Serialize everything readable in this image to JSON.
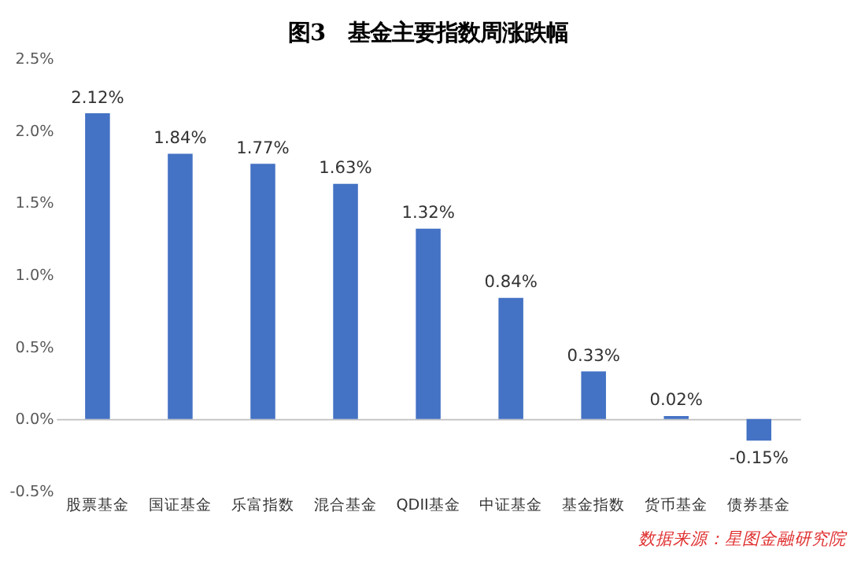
{
  "chart_data": {
    "type": "bar",
    "title": "图3　基金主要指数周涨跌幅",
    "categories": [
      "股票基金",
      "国证基金",
      "乐富指数",
      "混合基金",
      "QDII基金",
      "中证基金",
      "基金指数",
      "货币基金",
      "债券基金"
    ],
    "values": [
      2.12,
      1.84,
      1.77,
      1.63,
      1.32,
      0.84,
      0.33,
      0.02,
      -0.15
    ],
    "value_labels": [
      "2.12%",
      "1.84%",
      "1.77%",
      "1.63%",
      "1.32%",
      "0.84%",
      "0.33%",
      "0.02%",
      "-0.15%"
    ],
    "color": "#4472c4",
    "ylim": [
      -0.5,
      2.5
    ],
    "yticks": [
      {
        "value": -0.5,
        "label": "-0.5%"
      },
      {
        "value": 0,
        "label": "0.0%"
      },
      {
        "value": 0.5,
        "label": "0.5%"
      },
      {
        "value": 1.0,
        "label": "1.0%"
      },
      {
        "value": 1.5,
        "label": "1.5%"
      },
      {
        "value": 2.0,
        "label": "2.0%"
      },
      {
        "value": 2.5,
        "label": "2.5%"
      }
    ],
    "annotations": [
      "数据来源：星图金融研究院"
    ]
  }
}
